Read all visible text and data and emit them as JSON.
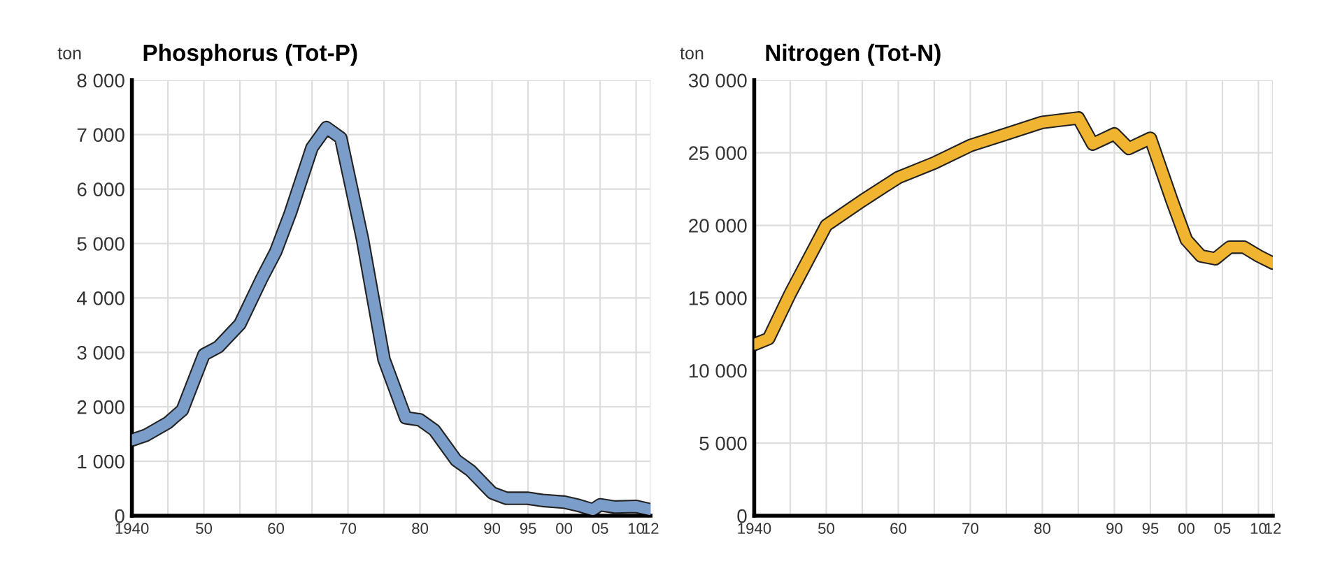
{
  "chart_data": [
    {
      "type": "line",
      "title": "Phosphorus (Tot-P)",
      "ylabel": "ton",
      "color": "#7b9dc9",
      "x": [
        1940,
        1942,
        1945,
        1947,
        1950,
        1952,
        1955,
        1958,
        1960,
        1962,
        1965,
        1967,
        1969,
        1972,
        1975,
        1978,
        1980,
        1982,
        1985,
        1987,
        1990,
        1992,
        1995,
        1997,
        2000,
        2002,
        2004,
        2005,
        2007,
        2010,
        2012
      ],
      "values": [
        1390,
        1480,
        1710,
        1940,
        2960,
        3100,
        3520,
        4350,
        4860,
        5560,
        6760,
        7130,
        6940,
        5090,
        2870,
        1800,
        1760,
        1570,
        1020,
        830,
        420,
        320,
        320,
        280,
        250,
        190,
        110,
        200,
        160,
        170,
        110
      ],
      "xlim": [
        1940,
        2012
      ],
      "ylim": [
        0,
        8000
      ],
      "xticks": [
        {
          "value": 1940,
          "label": "1940"
        },
        {
          "value": 1945,
          "label": null
        },
        {
          "value": 1950,
          "label": "50"
        },
        {
          "value": 1955,
          "label": null
        },
        {
          "value": 1960,
          "label": "60"
        },
        {
          "value": 1965,
          "label": null
        },
        {
          "value": 1970,
          "label": "70"
        },
        {
          "value": 1975,
          "label": null
        },
        {
          "value": 1980,
          "label": "80"
        },
        {
          "value": 1985,
          "label": null
        },
        {
          "value": 1990,
          "label": "90"
        },
        {
          "value": 1995,
          "label": "95"
        },
        {
          "value": 2000,
          "label": "00"
        },
        {
          "value": 2005,
          "label": "05"
        },
        {
          "value": 2010,
          "label": "10"
        },
        {
          "value": 2012,
          "label": "12"
        }
      ],
      "yticks": [
        {
          "value": 0,
          "label": "0"
        },
        {
          "value": 1000,
          "label": "1 000"
        },
        {
          "value": 2000,
          "label": "2 000"
        },
        {
          "value": 3000,
          "label": "3 000"
        },
        {
          "value": 4000,
          "label": "4 000"
        },
        {
          "value": 5000,
          "label": "5 000"
        },
        {
          "value": 6000,
          "label": "6 000"
        },
        {
          "value": 7000,
          "label": "7 000"
        },
        {
          "value": 8000,
          "label": "8 000"
        }
      ],
      "grid": true,
      "legend": false,
      "marker": "none",
      "line_style": "solid"
    },
    {
      "type": "line",
      "title": "Nitrogen (Tot-N)",
      "ylabel": "ton",
      "color": "#f0b430",
      "x": [
        1940,
        1942,
        1945,
        1950,
        1955,
        1960,
        1965,
        1970,
        1975,
        1980,
        1985,
        1987,
        1990,
        1992,
        1995,
        1998,
        2000,
        2002,
        2004,
        2006,
        2008,
        2010,
        2012
      ],
      "values": [
        11800,
        12200,
        15300,
        20000,
        21700,
        23300,
        24300,
        25500,
        26300,
        27100,
        27400,
        25600,
        26300,
        25300,
        26000,
        21700,
        19000,
        17900,
        17700,
        18500,
        18500,
        17900,
        17400
      ],
      "xlim": [
        1940,
        2012
      ],
      "ylim": [
        0,
        30000
      ],
      "xticks": [
        {
          "value": 1940,
          "label": "1940"
        },
        {
          "value": 1945,
          "label": null
        },
        {
          "value": 1950,
          "label": "50"
        },
        {
          "value": 1955,
          "label": null
        },
        {
          "value": 1960,
          "label": "60"
        },
        {
          "value": 1965,
          "label": null
        },
        {
          "value": 1970,
          "label": "70"
        },
        {
          "value": 1975,
          "label": null
        },
        {
          "value": 1980,
          "label": "80"
        },
        {
          "value": 1985,
          "label": null
        },
        {
          "value": 1990,
          "label": "90"
        },
        {
          "value": 1995,
          "label": "95"
        },
        {
          "value": 2000,
          "label": "00"
        },
        {
          "value": 2005,
          "label": "05"
        },
        {
          "value": 2010,
          "label": "10"
        },
        {
          "value": 2012,
          "label": "12"
        }
      ],
      "yticks": [
        {
          "value": 0,
          "label": "0"
        },
        {
          "value": 5000,
          "label": "5 000"
        },
        {
          "value": 10000,
          "label": "10 000"
        },
        {
          "value": 15000,
          "label": "15 000"
        },
        {
          "value": 20000,
          "label": "20 000"
        },
        {
          "value": 25000,
          "label": "25 000"
        },
        {
          "value": 30000,
          "label": "30 000"
        }
      ],
      "grid": true,
      "legend": false,
      "marker": "none",
      "line_style": "solid"
    }
  ]
}
